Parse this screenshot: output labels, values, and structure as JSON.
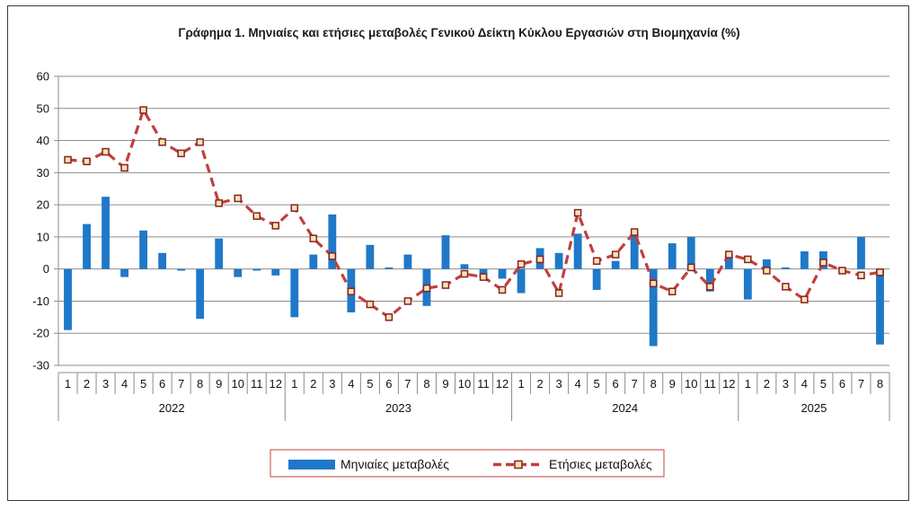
{
  "chart_data": {
    "type": "bar",
    "title": "Γράφημα 1.  Μηνιαίες και ετήσιες μεταβολές  Γενικού Δείκτη Κύκλου Εργασιών στη Βιομηχανία (%)",
    "ylim": [
      -30,
      60
    ],
    "yticks": [
      60,
      50,
      40,
      30,
      20,
      10,
      0,
      -10,
      -20,
      -30
    ],
    "grid": true,
    "legend_position": "bottom-center",
    "years": [
      "2022",
      "2023",
      "2024",
      "2025"
    ],
    "categories": [
      "1",
      "2",
      "3",
      "4",
      "5",
      "6",
      "7",
      "8",
      "9",
      "10",
      "11",
      "12",
      "1",
      "2",
      "3",
      "4",
      "5",
      "6",
      "7",
      "8",
      "9",
      "10",
      "11",
      "12",
      "1",
      "2",
      "3",
      "4",
      "5",
      "6",
      "7",
      "8",
      "9",
      "10",
      "11",
      "12",
      "1",
      "2",
      "3",
      "4",
      "5",
      "6",
      "7",
      "8"
    ],
    "category_years": [
      "2022",
      "2022",
      "2022",
      "2022",
      "2022",
      "2022",
      "2022",
      "2022",
      "2022",
      "2022",
      "2022",
      "2022",
      "2023",
      "2023",
      "2023",
      "2023",
      "2023",
      "2023",
      "2023",
      "2023",
      "2023",
      "2023",
      "2023",
      "2023",
      "2024",
      "2024",
      "2024",
      "2024",
      "2024",
      "2024",
      "2024",
      "2024",
      "2024",
      "2024",
      "2024",
      "2024",
      "2025",
      "2025",
      "2025",
      "2025",
      "2025",
      "2025",
      "2025",
      "2025"
    ],
    "series": [
      {
        "name": "Μηνιαίες μεταβολές",
        "type": "bar",
        "color": "#1f78c8",
        "values": [
          -19,
          14,
          22.5,
          -2.5,
          12,
          5,
          -0.5,
          -15.5,
          9.5,
          -2.5,
          -0.5,
          -2,
          -15,
          4.5,
          17,
          -13.5,
          7.5,
          0.5,
          4.5,
          -11.5,
          10.5,
          1.5,
          -2.5,
          -3,
          -7.5,
          6.5,
          5,
          11,
          -6.5,
          2.5,
          11,
          -24,
          8,
          10,
          -7,
          4.5,
          -9.5,
          3,
          0.5,
          5.5,
          5.5,
          0,
          10,
          -23.5
        ]
      },
      {
        "name": "Ετήσιες μεταβολές",
        "type": "line",
        "color": "#c0403f",
        "values": [
          34,
          33.5,
          36.5,
          31.5,
          49.5,
          39.5,
          36,
          39.5,
          20.5,
          22,
          16.5,
          13.5,
          19,
          9.5,
          4,
          -7,
          -11,
          -15,
          -10,
          -6,
          -5,
          -1.5,
          -2.5,
          -6.5,
          1.5,
          3,
          -7.5,
          17.5,
          2.5,
          4.5,
          11.5,
          -4.5,
          -7,
          0.5,
          -5.5,
          4.5,
          3,
          -0.5,
          -5.5,
          -9.5,
          2,
          -0.5,
          -2,
          -1
        ]
      }
    ]
  }
}
